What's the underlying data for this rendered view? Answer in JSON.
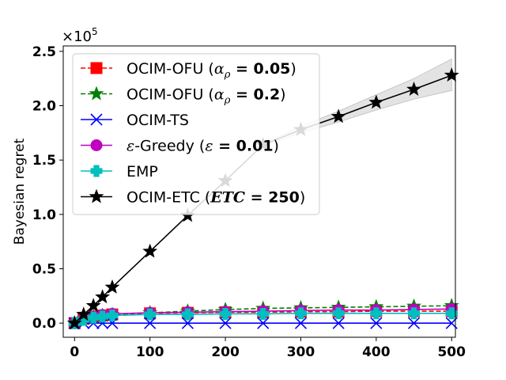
{
  "chart_data": {
    "type": "line",
    "title": "",
    "xlabel": "",
    "ylabel": "Bayesian regret",
    "y_multiplier_label": "×10^5",
    "y_multiplier_text": {
      "base": "×10",
      "exp": "5"
    },
    "xlim": [
      -15,
      505
    ],
    "ylim": [
      -0.13,
      2.55
    ],
    "x_ticks": [
      0,
      100,
      200,
      300,
      400,
      500
    ],
    "y_ticks": [
      0.0,
      0.5,
      1.0,
      1.5,
      2.0,
      2.5
    ],
    "y_tick_labels": [
      "0.0",
      "0.5",
      "1.0",
      "1.5",
      "2.0",
      "2.5"
    ],
    "x_tick_labels": [
      "0",
      "100",
      "200",
      "300",
      "400",
      "500"
    ],
    "grid": false,
    "legend_position": "upper-left",
    "series": [
      {
        "name": "OCIM-OFU (αρ = 0.05)",
        "legend": {
          "prefix": "OCIM-OFU (",
          "math": "α",
          "sub": "ρ",
          "bold": " = 0.05",
          "suffix": ")"
        },
        "color": "#ff0000",
        "linestyle": "dashed",
        "marker": "square",
        "x": [
          0,
          12,
          25,
          37,
          50,
          100,
          150,
          200,
          250,
          300,
          350,
          400,
          450,
          500
        ],
        "y": [
          0.0,
          0.04,
          0.06,
          0.07,
          0.08,
          0.09,
          0.095,
          0.1,
          0.1,
          0.105,
          0.105,
          0.11,
          0.11,
          0.11
        ]
      },
      {
        "name": "OCIM-OFU (αρ = 0.2)",
        "legend": {
          "prefix": "OCIM-OFU (",
          "math": "α",
          "sub": "ρ",
          "bold": " = 0.2",
          "suffix": ")"
        },
        "color": "#008000",
        "linestyle": "dashed",
        "marker": "star",
        "x": [
          0,
          12,
          25,
          37,
          50,
          100,
          150,
          200,
          250,
          300,
          350,
          400,
          450,
          500
        ],
        "y": [
          0.0,
          0.04,
          0.06,
          0.07,
          0.08,
          0.095,
          0.11,
          0.125,
          0.135,
          0.14,
          0.145,
          0.15,
          0.155,
          0.16
        ]
      },
      {
        "name": "OCIM-TS",
        "legend": {
          "prefix": "OCIM-TS",
          "math": "",
          "sub": "",
          "bold": "",
          "suffix": ""
        },
        "color": "#0000ff",
        "linestyle": "solid",
        "marker": "x",
        "x": [
          0,
          12,
          25,
          37,
          50,
          100,
          150,
          200,
          250,
          300,
          350,
          400,
          450,
          500
        ],
        "y": [
          0.0,
          0.0,
          0.0,
          0.0,
          0.0,
          0.0,
          0.0,
          0.0,
          0.0,
          0.0,
          0.0,
          0.0,
          0.0,
          0.0
        ]
      },
      {
        "name": "ε-Greedy (ε = 0.01)",
        "legend": {
          "prefix": "",
          "math": "ε",
          "sub": "",
          "bold": " = 0.01",
          "suffix": ")",
          "mid": "-Greedy (",
          "math2": "ε"
        },
        "color": "#bf00bf",
        "linestyle": "solid",
        "marker": "circle",
        "x": [
          0,
          12,
          25,
          37,
          50,
          100,
          150,
          200,
          250,
          300,
          350,
          400,
          450,
          500
        ],
        "y": [
          0.0,
          0.04,
          0.06,
          0.075,
          0.085,
          0.095,
          0.1,
          0.105,
          0.11,
          0.115,
          0.12,
          0.12,
          0.125,
          0.13
        ]
      },
      {
        "name": "EMP",
        "legend": {
          "prefix": "EMP",
          "math": "",
          "sub": "",
          "bold": "",
          "suffix": ""
        },
        "color": "#00bfbf",
        "linestyle": "solid",
        "marker": "plus",
        "x": [
          0,
          12,
          25,
          37,
          50,
          100,
          150,
          200,
          250,
          300,
          350,
          400,
          450,
          500
        ],
        "y": [
          0.0,
          0.03,
          0.05,
          0.06,
          0.07,
          0.08,
          0.08,
          0.085,
          0.085,
          0.09,
          0.09,
          0.09,
          0.09,
          0.09
        ]
      },
      {
        "name": "OCIM-ETC (ETC = 250)",
        "legend": {
          "prefix": "OCIM-ETC (",
          "math": "",
          "sub": "",
          "bolditalic": "ETC",
          "bold": " = 250",
          "suffix": ")"
        },
        "color": "#000000",
        "linestyle": "solid",
        "marker": "star",
        "x": [
          0,
          12,
          25,
          37,
          50,
          100,
          150,
          200,
          250,
          300,
          350,
          400,
          450,
          500
        ],
        "y": [
          0.0,
          0.08,
          0.16,
          0.24,
          0.33,
          0.66,
          0.99,
          1.31,
          1.64,
          1.78,
          1.9,
          2.03,
          2.15,
          2.28
        ],
        "band_x": [
          250,
          300,
          350,
          400,
          450,
          500
        ],
        "band_low": [
          1.63,
          1.75,
          1.85,
          1.96,
          2.06,
          2.14
        ],
        "band_high": [
          1.65,
          1.81,
          1.95,
          2.1,
          2.25,
          2.43
        ]
      }
    ]
  }
}
